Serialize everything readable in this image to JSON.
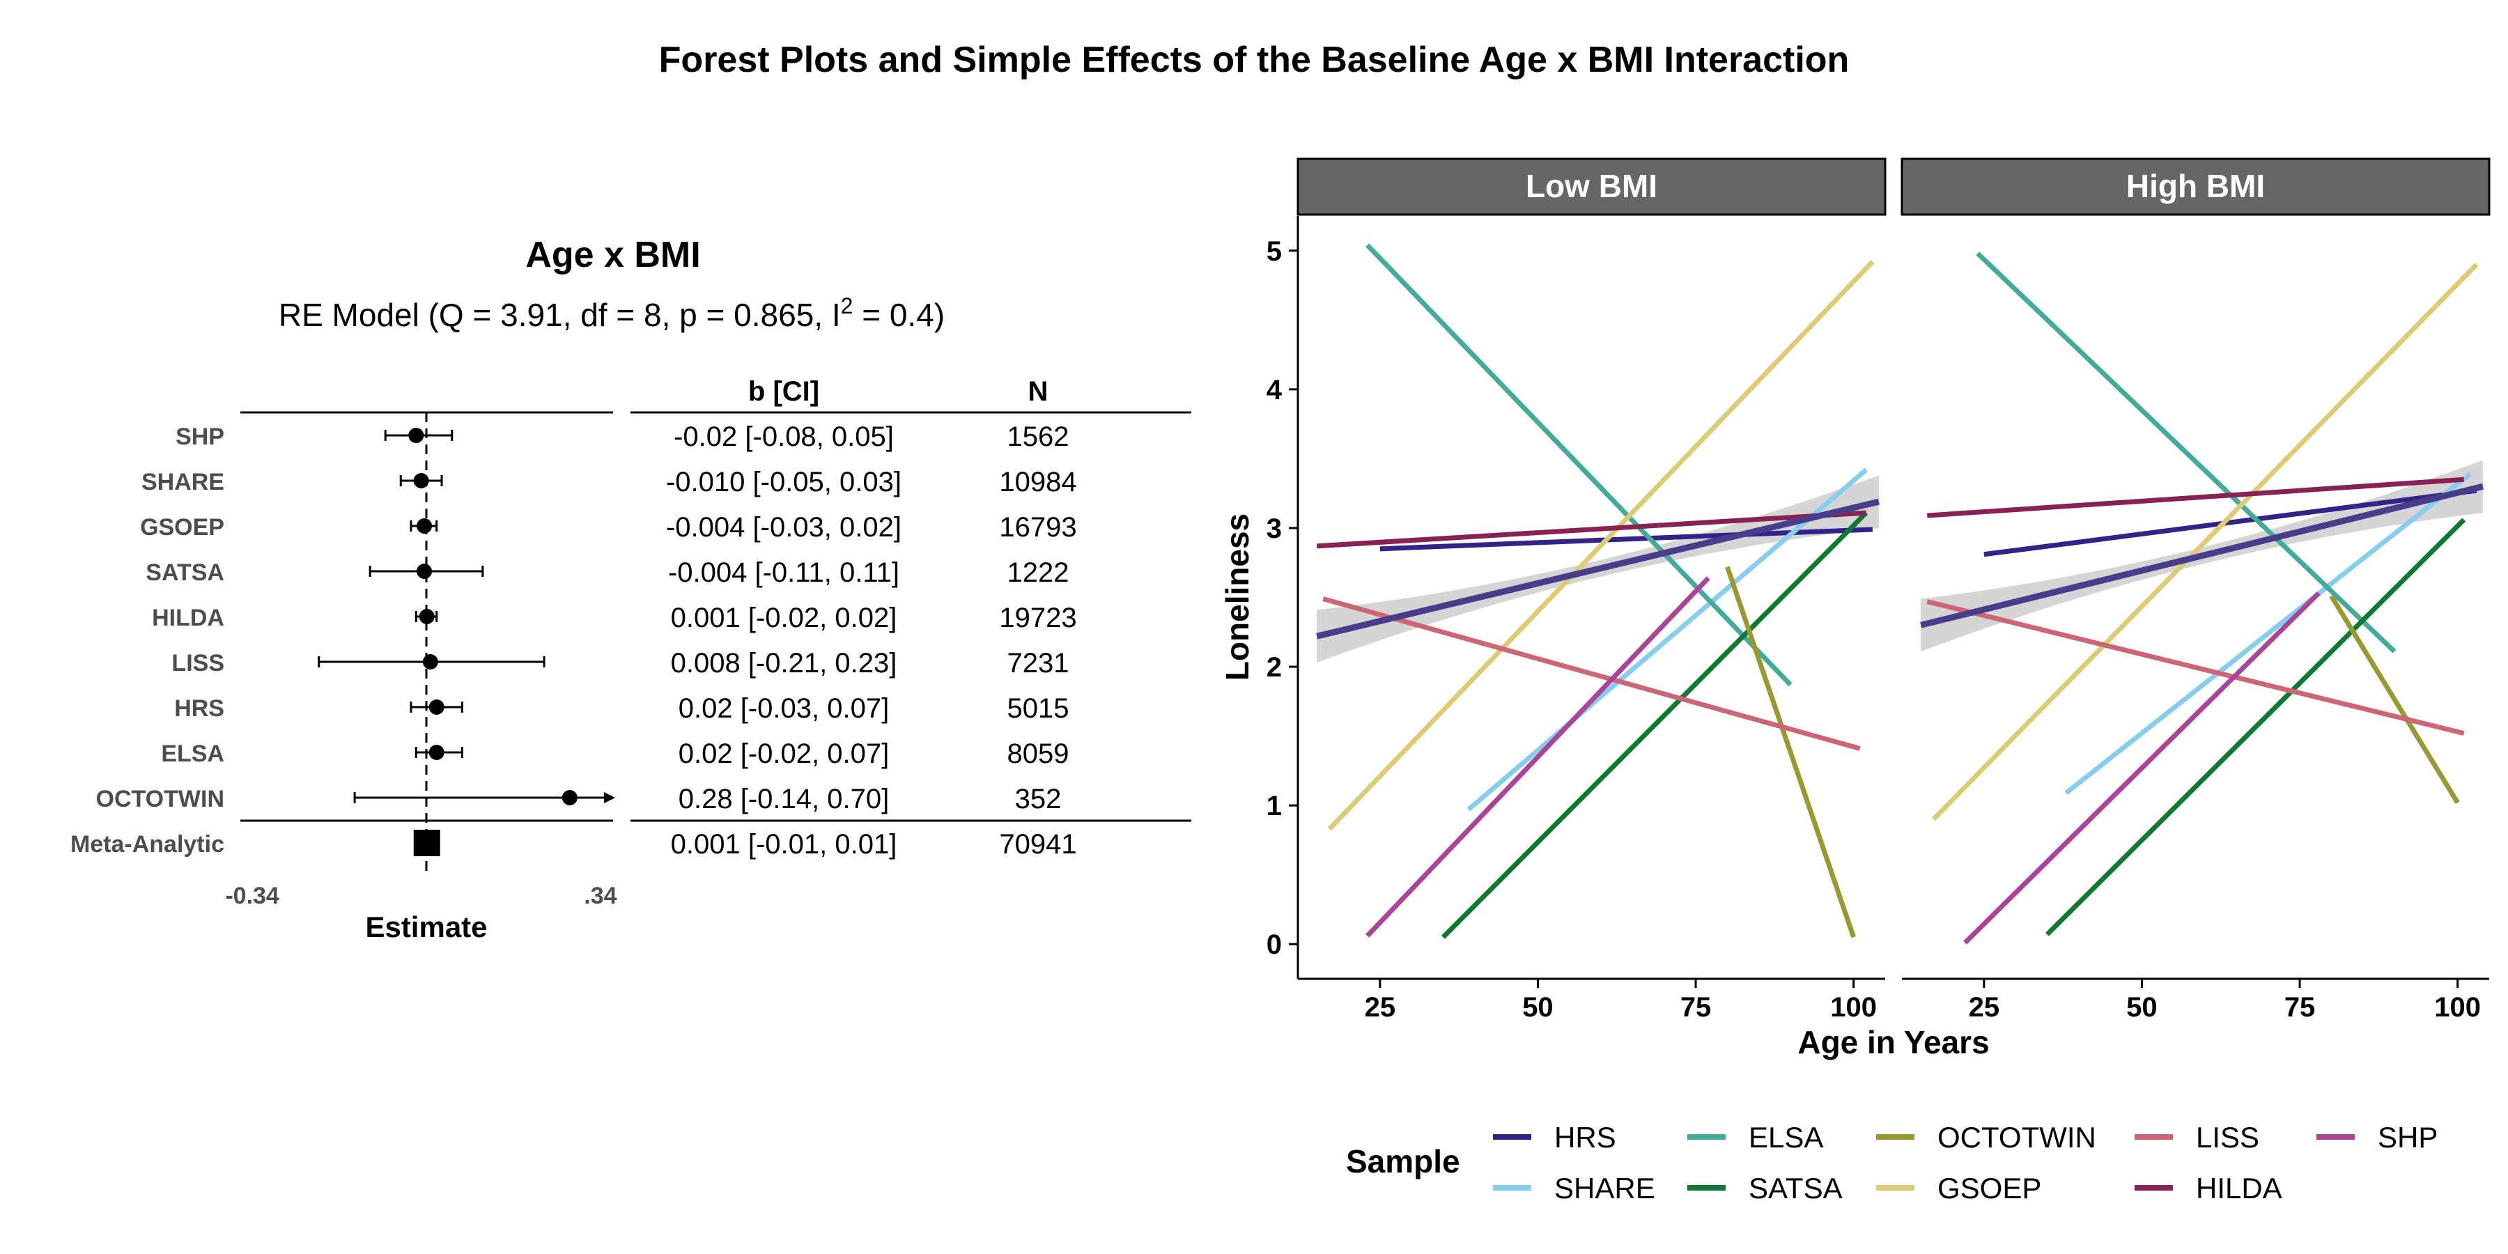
{
  "title": "Forest Plots and Simple Effects of the Baseline Age x BMI Interaction",
  "chart_data": [
    {
      "type": "forest",
      "title": "Age x BMI",
      "model_text": "RE Model (Q = 3.91, df = 8, p = 0.865, I",
      "model_sup": "2",
      "model_tail": " = 0.4)",
      "col_headers": {
        "ci": "b [CI]",
        "n": "N"
      },
      "xlabel": "Estimate",
      "xlim": [
        -0.34,
        0.34
      ],
      "xticks": [
        "-0.34",
        ".34"
      ],
      "studies": [
        {
          "label": "SHP",
          "b": -0.02,
          "lo": -0.08,
          "hi": 0.05,
          "ci_text": "-0.02 [-0.08, 0.05]",
          "n": "1562"
        },
        {
          "label": "SHARE",
          "b": -0.01,
          "lo": -0.05,
          "hi": 0.03,
          "ci_text": "-0.010 [-0.05, 0.03]",
          "n": "10984"
        },
        {
          "label": "GSOEP",
          "b": -0.004,
          "lo": -0.03,
          "hi": 0.02,
          "ci_text": "-0.004 [-0.03, 0.02]",
          "n": "16793"
        },
        {
          "label": "SATSA",
          "b": -0.004,
          "lo": -0.11,
          "hi": 0.11,
          "ci_text": "-0.004 [-0.11, 0.11]",
          "n": "1222"
        },
        {
          "label": "HILDA",
          "b": 0.001,
          "lo": -0.02,
          "hi": 0.02,
          "ci_text": "0.001 [-0.02, 0.02]",
          "n": "19723"
        },
        {
          "label": "LISS",
          "b": 0.008,
          "lo": -0.21,
          "hi": 0.23,
          "ci_text": "0.008 [-0.21, 0.23]",
          "n": "7231"
        },
        {
          "label": "HRS",
          "b": 0.02,
          "lo": -0.03,
          "hi": 0.07,
          "ci_text": "0.02 [-0.03, 0.07]",
          "n": "5015"
        },
        {
          "label": "ELSA",
          "b": 0.02,
          "lo": -0.02,
          "hi": 0.07,
          "ci_text": "0.02 [-0.02, 0.07]",
          "n": "8059"
        },
        {
          "label": "OCTOTWIN",
          "b": 0.28,
          "lo": -0.14,
          "hi": 0.7,
          "ci_text": "0.28 [-0.14, 0.70]",
          "n": "352"
        }
      ],
      "meta": {
        "label": "Meta-Analytic",
        "b": 0.001,
        "lo": -0.01,
        "hi": 0.01,
        "ci_text": "0.001 [-0.01, 0.01]",
        "n": "70941"
      }
    },
    {
      "type": "line",
      "facets": [
        "Low BMI",
        "High BMI"
      ],
      "xlabel": "Age in Years",
      "ylabel": "Loneliness",
      "xlim": [
        12,
        105
      ],
      "ylim": [
        -0.25,
        5.25
      ],
      "xticks": [
        25,
        50,
        75,
        100
      ],
      "yticks": [
        0,
        1,
        2,
        3,
        4,
        5
      ],
      "legend_title": "Sample",
      "legend_position": "bottom",
      "series": [
        {
          "name": "HRS",
          "color": "#332288",
          "low": [
            [
              25,
              2.85
            ],
            [
              103,
              2.99
            ]
          ],
          "high": [
            [
              25,
              2.81
            ],
            [
              103,
              3.27
            ]
          ]
        },
        {
          "name": "SHARE",
          "color": "#88CCEE",
          "low": [
            [
              39,
              0.97
            ],
            [
              102,
              3.42
            ]
          ],
          "high": [
            [
              38,
              1.09
            ],
            [
              102,
              3.39
            ]
          ]
        },
        {
          "name": "ELSA",
          "color": "#44AA99",
          "low": [
            [
              23,
              5.04
            ],
            [
              90,
              1.87
            ]
          ],
          "high": [
            [
              24,
              4.98
            ],
            [
              90,
              2.11
            ]
          ]
        },
        {
          "name": "SATSA",
          "color": "#117733",
          "low": [
            [
              35,
              0.05
            ],
            [
              102,
              3.11
            ]
          ],
          "high": [
            [
              35,
              0.07
            ],
            [
              101,
              3.06
            ]
          ]
        },
        {
          "name": "OCTOTWIN",
          "color": "#999933",
          "low": [
            [
              80,
              2.72
            ],
            [
              100,
              0.05
            ]
          ],
          "high": [
            [
              80,
              2.51
            ],
            [
              100,
              1.02
            ]
          ]
        },
        {
          "name": "GSOEP",
          "color": "#DDCC77",
          "low": [
            [
              17,
              0.83
            ],
            [
              103,
              4.92
            ]
          ],
          "high": [
            [
              17,
              0.9
            ],
            [
              103,
              4.9
            ]
          ]
        },
        {
          "name": "LISS",
          "color": "#CC6677",
          "low": [
            [
              16,
              2.49
            ],
            [
              101,
              1.41
            ]
          ],
          "high": [
            [
              16,
              2.47
            ],
            [
              101,
              1.52
            ]
          ]
        },
        {
          "name": "HILDA",
          "color": "#882255",
          "low": [
            [
              15,
              2.87
            ],
            [
              102,
              3.11
            ]
          ],
          "high": [
            [
              16,
              3.09
            ],
            [
              101,
              3.35
            ]
          ]
        },
        {
          "name": "SHP",
          "color": "#AA4499",
          "low": [
            [
              23,
              0.06
            ],
            [
              77,
              2.64
            ]
          ],
          "high": [
            [
              22,
              0.01
            ],
            [
              78,
              2.53
            ]
          ]
        }
      ],
      "overall": {
        "color": "#483D8B",
        "low": [
          [
            15,
            2.22
          ],
          [
            104,
            3.19
          ]
        ],
        "high": [
          [
            15,
            2.3
          ],
          [
            104,
            3.3
          ]
        ]
      },
      "band_color": "#BEBEBE"
    }
  ]
}
